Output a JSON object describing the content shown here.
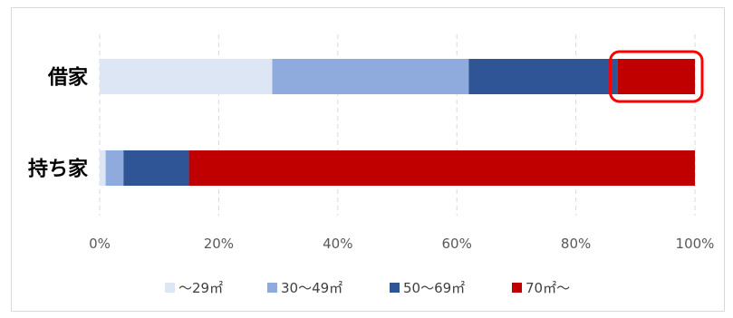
{
  "chart_data": {
    "type": "bar",
    "orientation": "horizontal",
    "stacked": true,
    "normalized": true,
    "categories": [
      "借家",
      "持ち家"
    ],
    "series": [
      {
        "name": "〜29㎡",
        "color": "#dce6f4",
        "values": [
          29,
          1
        ]
      },
      {
        "name": "30〜49㎡",
        "color": "#8faadc",
        "values": [
          33,
          3
        ]
      },
      {
        "name": "50〜69㎡",
        "color": "#2f5597",
        "values": [
          25,
          11
        ]
      },
      {
        "name": "70㎡〜",
        "color": "#c00000",
        "values": [
          13,
          85
        ]
      }
    ],
    "xlim": [
      0,
      100
    ],
    "x_ticks": [
      "0%",
      "20%",
      "40%",
      "60%",
      "80%",
      "100%"
    ],
    "grid": "vertical-dashed",
    "legend_position": "bottom",
    "highlight": {
      "category": "借家",
      "series": "70㎡〜",
      "color": "#ff0000"
    }
  }
}
